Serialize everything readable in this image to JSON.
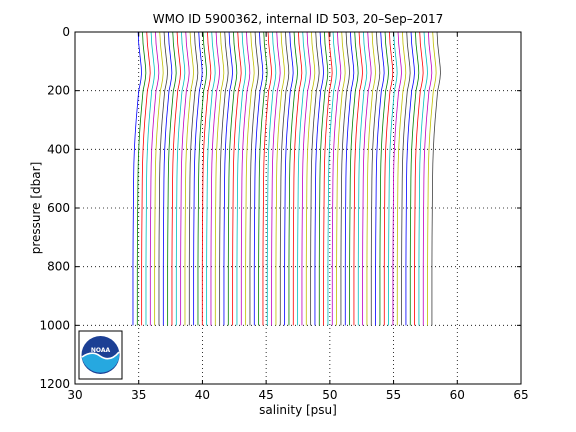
{
  "chart_data": {
    "type": "line",
    "title": "WMO ID 5900362, internal ID 503, 20–Sep–2017",
    "xlabel": "salinity [psu]",
    "ylabel": "pressure [dbar]",
    "xlim": [
      30,
      65
    ],
    "ylim": [
      0,
      1200
    ],
    "y_reversed": true,
    "grid": true,
    "grid_style": "dotted",
    "x_ticks": [
      30,
      35,
      40,
      45,
      50,
      55,
      60,
      65
    ],
    "y_ticks": [
      0,
      200,
      400,
      600,
      800,
      1000,
      1200
    ],
    "profiles": {
      "count": 70,
      "first_offset": 0,
      "offset_step": 0.34,
      "pressure": [
        0,
        20,
        40,
        60,
        80,
        100,
        120,
        140,
        160,
        180,
        200,
        250,
        300,
        350,
        400,
        450,
        500,
        600,
        700,
        800,
        900,
        1000
      ],
      "salinity": [
        34.95,
        34.98,
        35.0,
        35.05,
        35.1,
        35.15,
        35.2,
        35.22,
        35.18,
        35.1,
        35.0,
        34.9,
        34.8,
        34.72,
        34.66,
        34.62,
        34.6,
        34.58,
        34.56,
        34.55,
        34.55,
        34.55
      ]
    },
    "series_colors": [
      "#0000ff",
      "#008000",
      "#ff0000",
      "#00bfbf",
      "#bf00bf",
      "#bfbf00",
      "#404040"
    ]
  },
  "logo": {
    "text": "NOAA",
    "colors": {
      "outer": "#1c3f94",
      "inner": "#26a8e0",
      "wave": "#ffffff"
    }
  }
}
